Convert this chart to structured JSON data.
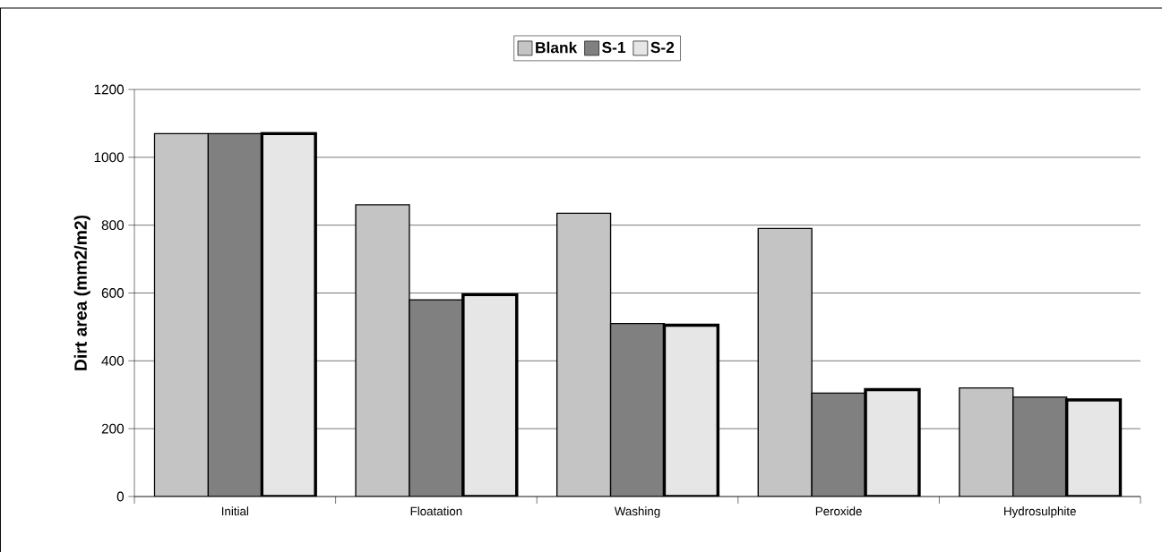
{
  "chart_data": {
    "type": "bar",
    "ylabel": "Dirt area (mm2/m2)",
    "categories": [
      "Initial",
      "Floatation",
      "Washing",
      "Peroxide",
      "Hydrosulphite"
    ],
    "series": [
      {
        "name": "Blank",
        "color": "#c4c4c4",
        "values": [
          1070,
          860,
          835,
          790,
          320
        ]
      },
      {
        "name": "S-1",
        "color": "#808080",
        "values": [
          1070,
          580,
          510,
          305,
          293
        ]
      },
      {
        "name": "S-2",
        "color": "#e6e6e6",
        "values": [
          1070,
          595,
          505,
          315,
          285
        ]
      }
    ],
    "ylim": [
      0,
      1200
    ],
    "yticks": [
      0,
      200,
      400,
      600,
      800,
      1000,
      1200
    ],
    "grid": "y",
    "legend": "top"
  }
}
